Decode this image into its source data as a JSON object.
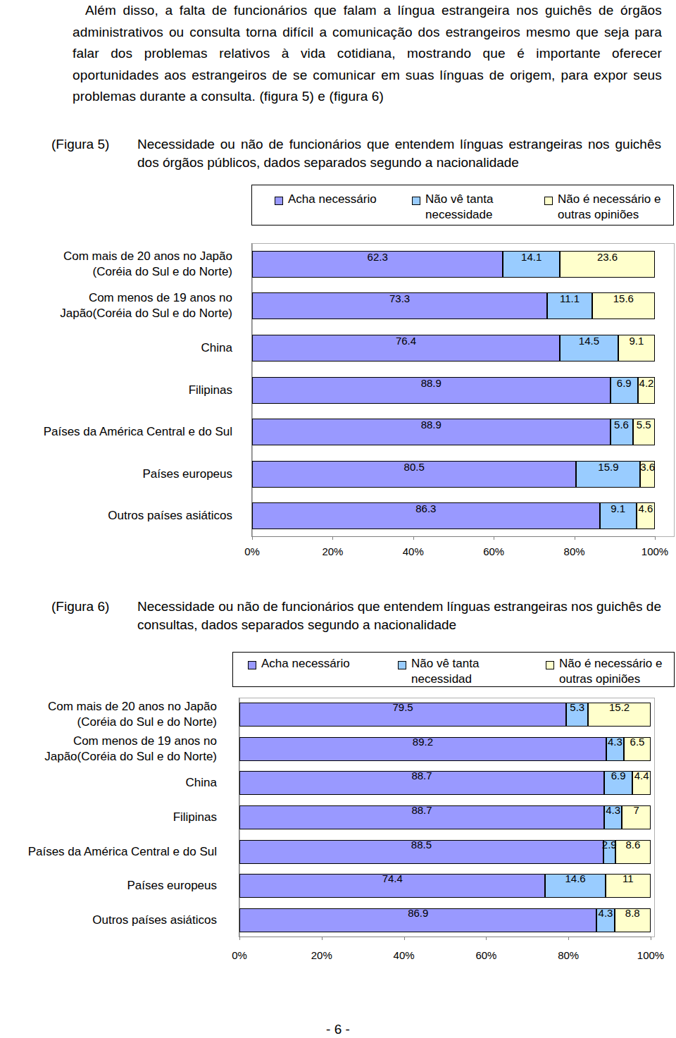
{
  "paragraph": "Além disso, a falta de funcionários que falam a língua estrangeira nos guichês de órgãos administrativos ou consulta torna difícil a comunicação dos estrangeiros mesmo que seja para falar dos problemas relativos à vida cotidiana, mostrando que é importante oferecer oportunidades aos estrangeiros de se comunicar em suas línguas de origem, para expor seus problemas durante a consulta. (figura 5) e (figura 6)",
  "page_number": "- 6 -",
  "chart_data": [
    {
      "type": "bar",
      "orientation": "horizontal",
      "stacked": true,
      "data_labels": true,
      "grid": false,
      "legend": "top",
      "annotations": [
        "(Figura 5)"
      ],
      "title": "Necessidade ou não de funcionários que entendem línguas estrangeiras nos guichês dos órgãos públicos, dados separados segundo a nacionalidade",
      "categories": [
        "Com mais de 20 anos no Japão (Coréia do Sul e do Norte)",
        "Com menos de 19 anos no Japão(Coréia do Sul e do Norte)",
        "China",
        "Filipinas",
        "Países da América Central e do Sul",
        "Países europeus",
        "Outros países asiáticos"
      ],
      "series": [
        {
          "name": "Acha necessário",
          "color": "#9999ff",
          "values": [
            62.3,
            73.3,
            76.4,
            88.9,
            88.9,
            80.5,
            86.3
          ]
        },
        {
          "name": "Não vê tanta necessidade",
          "color": "#99ccff",
          "values": [
            14.1,
            11.1,
            14.5,
            6.9,
            5.6,
            15.9,
            9.1
          ]
        },
        {
          "name": "Não é necessário e outras opiniões",
          "color": "#ffffcc",
          "values": [
            23.6,
            15.6,
            9.1,
            4.2,
            5.5,
            3.6,
            4.6
          ]
        }
      ],
      "xlim": [
        0,
        100
      ],
      "xticks": [
        {
          "value": 0,
          "label": "0%"
        },
        {
          "value": 20,
          "label": "20%"
        },
        {
          "value": 40,
          "label": "40%"
        },
        {
          "value": 60,
          "label": "60%"
        },
        {
          "value": 80,
          "label": "80%"
        },
        {
          "value": 100,
          "label": "100%"
        }
      ]
    },
    {
      "type": "bar",
      "orientation": "horizontal",
      "stacked": true,
      "data_labels": true,
      "grid": false,
      "legend": "top",
      "annotations": [
        "(Figura 6)"
      ],
      "title": "Necessidade ou não de funcionários que entendem línguas estrangeiras nos guichês de consultas, dados separados segundo a nacionalidade",
      "categories": [
        "Com mais de 20 anos no Japão (Coréia do Sul e do Norte)",
        "Com menos de 19 anos no Japão(Coréia do Sul e do Norte)",
        "China",
        "Filipinas",
        "Países da América Central e do Sul",
        "Países europeus",
        "Outros países asiáticos"
      ],
      "series": [
        {
          "name": "Acha necessário",
          "color": "#9999ff",
          "values": [
            79.5,
            89.2,
            88.7,
            88.7,
            88.5,
            74.4,
            86.9
          ]
        },
        {
          "name": "Não vê tanta necessidad",
          "color": "#99ccff",
          "values": [
            5.3,
            4.3,
            6.9,
            4.3,
            2.9,
            14.6,
            4.3
          ]
        },
        {
          "name": "Não é necessário e outras opiniões",
          "color": "#ffffcc",
          "values": [
            15.2,
            6.5,
            4.4,
            7,
            8.6,
            11,
            8.8
          ]
        }
      ],
      "xlim": [
        0,
        100
      ],
      "xticks": [
        {
          "value": 0,
          "label": "0%"
        },
        {
          "value": 20,
          "label": "20%"
        },
        {
          "value": 40,
          "label": "40%"
        },
        {
          "value": 60,
          "label": "60%"
        },
        {
          "value": 80,
          "label": "80%"
        },
        {
          "value": 100,
          "label": "100%"
        }
      ]
    }
  ]
}
